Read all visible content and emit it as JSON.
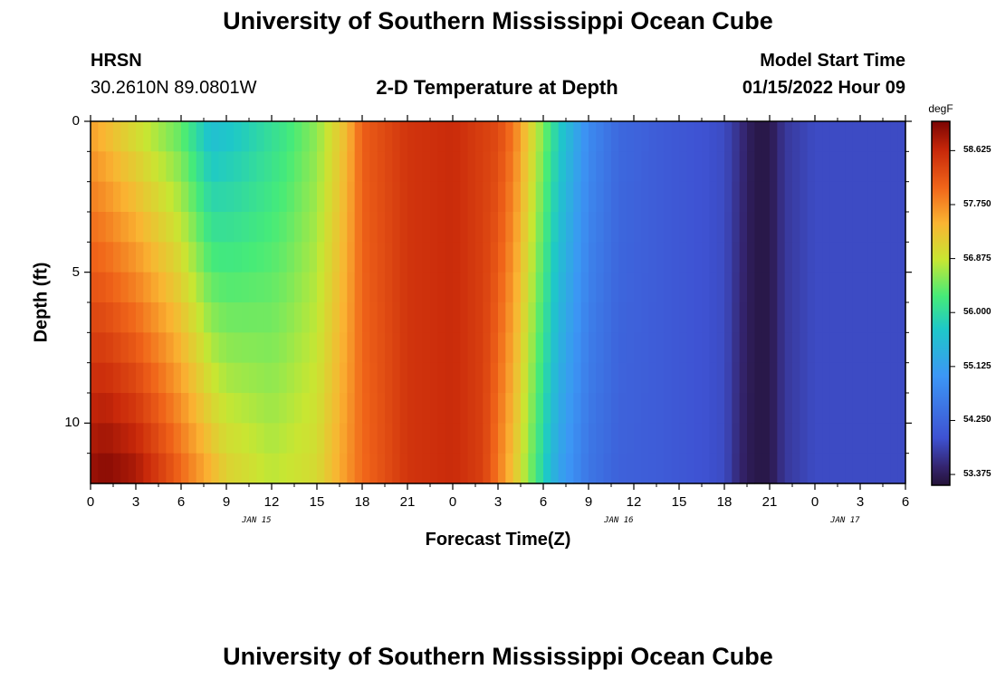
{
  "header": {
    "title": "University of Southern Mississippi Ocean Cube",
    "station_code": "HRSN",
    "coordinates": "30.2610N  89.0801W",
    "plot_title": "2-D Temperature at Depth",
    "model_start_label": "Model Start Time",
    "model_start_value": "01/15/2022 Hour 09"
  },
  "footer": {
    "title": "University of Southern Mississippi Ocean Cube"
  },
  "chart_data": {
    "type": "heatmap",
    "title": "2-D Temperature at Depth",
    "xlabel": "Forecast Time(Z)",
    "ylabel": "Depth (ft)",
    "colorbar_unit": "degF",
    "x_tick_labels": [
      "0",
      "3",
      "6",
      "9",
      "12",
      "15",
      "18",
      "21",
      "0",
      "3",
      "6",
      "9",
      "12",
      "15",
      "18",
      "21",
      "0",
      "3",
      "6"
    ],
    "x_date_labels": [
      {
        "label": "JAN 15",
        "at_hour": 11
      },
      {
        "label": "JAN 16",
        "at_hour": 35
      },
      {
        "label": "JAN 17",
        "at_hour": 50
      }
    ],
    "x_range_hours": [
      0,
      54
    ],
    "y_tick_labels": [
      "0",
      "5",
      "10"
    ],
    "y_ticks": [
      0,
      5,
      10
    ],
    "y_range_ft": [
      0,
      12
    ],
    "colorbar_ticks": [
      "58.625",
      "57.750",
      "56.875",
      "56.000",
      "55.125",
      "54.250",
      "53.375"
    ],
    "colorbar_range": [
      53.2,
      59.1
    ],
    "depth_rows_ft": [
      0.5,
      1.5,
      2.5,
      3.5,
      4.5,
      5.5,
      6.5,
      7.5,
      8.5,
      9.5,
      10.5,
      11.5
    ],
    "surface_profile": {
      "hours": [
        0,
        3,
        6,
        8,
        10,
        13,
        15,
        17,
        18,
        21,
        24,
        27,
        28,
        29,
        30,
        31,
        33,
        35,
        38,
        40,
        42,
        43,
        44,
        45,
        46,
        48,
        52,
        54
      ],
      "degF": [
        57.6,
        57.0,
        56.4,
        55.6,
        55.8,
        56.2,
        56.6,
        57.4,
        58.1,
        58.5,
        58.6,
        58.3,
        57.9,
        57.2,
        56.5,
        55.8,
        54.8,
        54.3,
        54.1,
        54.0,
        53.9,
        53.6,
        53.3,
        53.3,
        53.7,
        53.9,
        53.9,
        53.9
      ]
    },
    "bottom_profile": {
      "hours": [
        0,
        1,
        3,
        5,
        7,
        9,
        12,
        15,
        18,
        21,
        24,
        26,
        27,
        28,
        29,
        30,
        31,
        33,
        35,
        38,
        40,
        42,
        43,
        44,
        45,
        46,
        48,
        52,
        54
      ],
      "degF": [
        58.9,
        59.0,
        58.8,
        58.3,
        57.7,
        57.1,
        56.8,
        57.0,
        58.0,
        58.5,
        58.6,
        58.4,
        57.9,
        57.3,
        56.6,
        55.9,
        55.2,
        54.5,
        54.2,
        54.1,
        54.0,
        53.9,
        53.5,
        53.3,
        53.3,
        53.7,
        53.9,
        53.9,
        53.9
      ]
    }
  }
}
